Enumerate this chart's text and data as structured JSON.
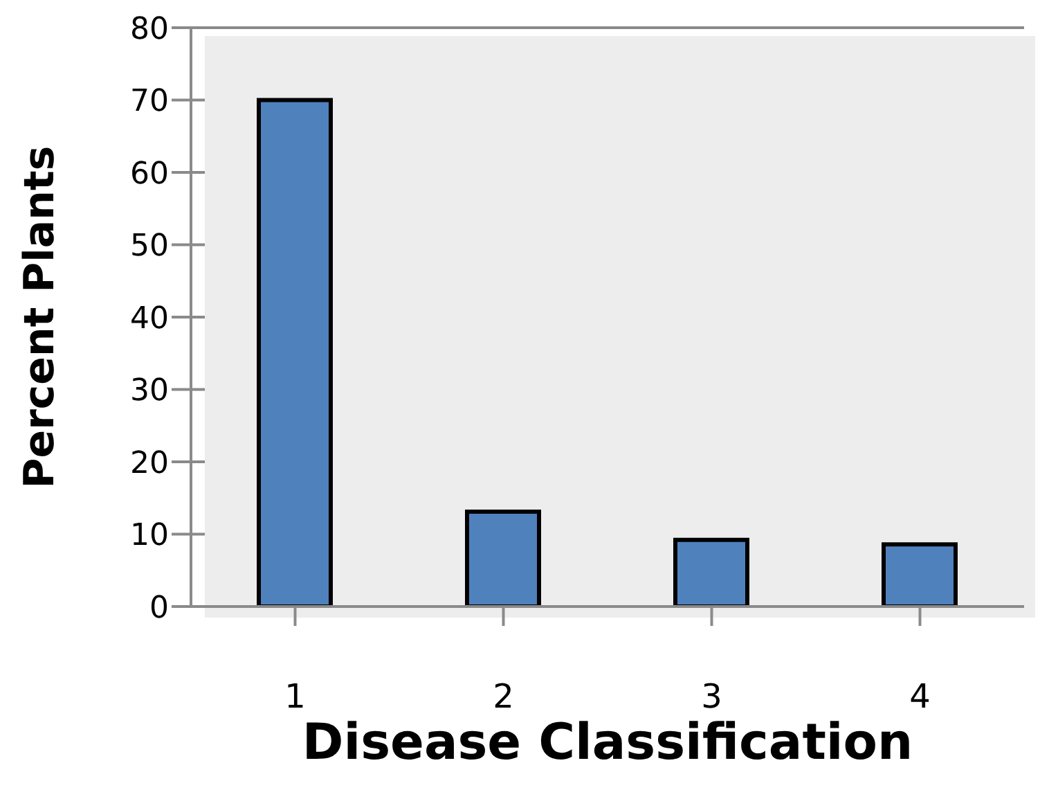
{
  "chart_data": {
    "type": "bar",
    "xlabel": "Disease Classification",
    "ylabel": "Percent Plants",
    "categories": [
      "1",
      "2",
      "3",
      "4"
    ],
    "values": [
      70,
      13.1,
      9.2,
      8.6
    ],
    "color": "#4f81bd",
    "ylim": [
      0,
      80
    ],
    "yticks": [
      0,
      10,
      20,
      30,
      40,
      50,
      60,
      70,
      80
    ],
    "grid": "y"
  }
}
